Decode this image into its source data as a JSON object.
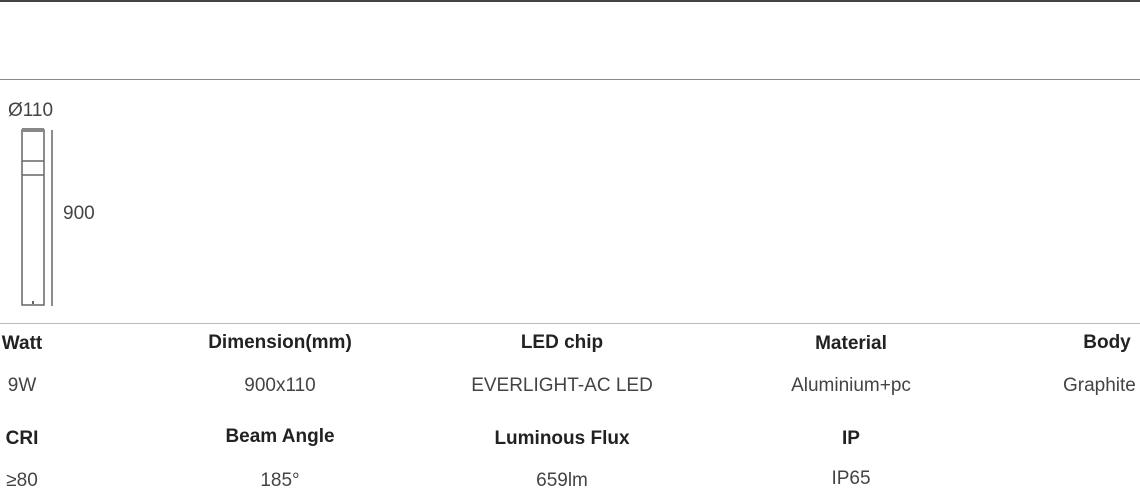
{
  "drawing": {
    "diameter_label": "Ø110",
    "height_label": "900"
  },
  "specs": {
    "row1": [
      {
        "label": "Watt",
        "value": "9W"
      },
      {
        "label": "Dimension(mm)",
        "value": "900x110"
      },
      {
        "label": "LED chip",
        "value": "EVERLIGHT-AC LED"
      },
      {
        "label": "Material",
        "value": "Aluminium+pc"
      },
      {
        "label": "Body",
        "value": "Graphite"
      }
    ],
    "row2": [
      {
        "label": "CRI",
        "value": "≥80"
      },
      {
        "label": "Beam Angle",
        "value": "185°"
      },
      {
        "label": "Luminous Flux",
        "value": "659lm"
      },
      {
        "label": "IP",
        "value": "IP65"
      }
    ]
  }
}
